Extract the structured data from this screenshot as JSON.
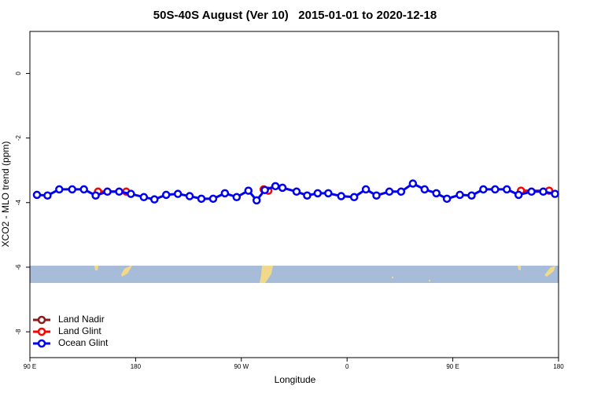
{
  "chart_data": {
    "type": "line",
    "title": "50S-40S August (Ver 10)   2015-01-01 to 2020-12-18",
    "x_label": "Longitude",
    "y_label": "XCO2 - MLO trend (ppm)",
    "xlim": [
      90,
      540
    ],
    "ylim": [
      -8.8,
      1.3
    ],
    "xticks": [
      {
        "value": 90,
        "label": "90 E"
      },
      {
        "value": 180,
        "label": "180"
      },
      {
        "value": 270,
        "label": "90 W"
      },
      {
        "value": 360,
        "label": "0"
      },
      {
        "value": 450,
        "label": "90 E"
      },
      {
        "value": 540,
        "label": "180"
      }
    ],
    "yticks": [
      0,
      -2,
      -4,
      -6,
      -8
    ],
    "legend": "bottom-left",
    "series": [
      {
        "name": "Land Nadir",
        "color": "#8b1a1a",
        "x": [],
        "values": []
      },
      {
        "name": "Land Glint",
        "color": "#ff0000",
        "x": [
          148,
          172,
          230,
          289,
          293,
          400,
          508,
          532
        ],
        "values": [
          -3.66,
          -3.66,
          null,
          -3.59,
          -3.63,
          null,
          -3.63,
          -3.63
        ]
      },
      {
        "name": "Ocean Glint",
        "color": "#0000ee",
        "x": [
          96,
          105,
          115,
          126,
          136,
          146,
          156,
          166,
          176,
          187,
          196,
          206,
          216,
          226,
          236,
          246,
          256,
          266,
          276,
          283,
          290,
          299,
          305,
          317,
          326,
          335,
          344,
          355,
          366,
          376,
          385,
          396,
          406,
          416,
          426,
          436,
          445,
          456,
          466,
          476,
          486,
          496,
          506,
          517,
          527,
          537
        ],
        "values": [
          -3.76,
          -3.78,
          -3.59,
          -3.59,
          -3.59,
          -3.78,
          -3.66,
          -3.66,
          -3.73,
          -3.83,
          -3.9,
          -3.76,
          -3.73,
          -3.8,
          -3.88,
          -3.88,
          -3.71,
          -3.83,
          -3.63,
          -3.93,
          -3.61,
          -3.49,
          -3.54,
          -3.66,
          -3.78,
          -3.71,
          -3.71,
          -3.8,
          -3.83,
          -3.59,
          -3.78,
          -3.66,
          -3.66,
          -3.41,
          -3.59,
          -3.71,
          -3.88,
          -3.76,
          -3.78,
          -3.59,
          -3.59,
          -3.59,
          -3.76,
          -3.66,
          -3.66,
          -3.73
        ]
      }
    ]
  }
}
